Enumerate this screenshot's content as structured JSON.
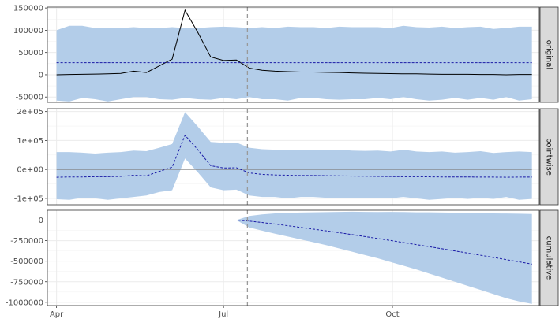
{
  "chart_data": [
    {
      "type": "area",
      "panel": "original",
      "strip_label": "original",
      "x_dates": [
        "2019-04-01",
        "2019-04-08",
        "2019-04-15",
        "2019-04-22",
        "2019-04-29",
        "2019-05-06",
        "2019-05-13",
        "2019-05-20",
        "2019-05-27",
        "2019-06-03",
        "2019-06-10",
        "2019-06-17",
        "2019-06-24",
        "2019-07-01",
        "2019-07-08",
        "2019-07-15",
        "2019-07-22",
        "2019-07-29",
        "2019-08-05",
        "2019-08-12",
        "2019-08-19",
        "2019-08-26",
        "2019-09-02",
        "2019-09-09",
        "2019-09-16",
        "2019-09-23",
        "2019-09-30",
        "2019-10-07",
        "2019-10-14",
        "2019-10-21",
        "2019-10-28",
        "2019-11-04",
        "2019-11-11",
        "2019-11-18",
        "2019-11-25",
        "2019-12-02",
        "2019-12-09",
        "2019-12-16"
      ],
      "series": [
        {
          "role": "observed",
          "line": "solid",
          "color": "#000000",
          "values": [
            0,
            500,
            1000,
            1500,
            2000,
            3000,
            8000,
            5000,
            20000,
            35000,
            145000,
            95000,
            40000,
            32000,
            33000,
            15000,
            10000,
            8000,
            7000,
            6000,
            6000,
            5500,
            5000,
            4000,
            3500,
            3000,
            2500,
            2000,
            2000,
            1500,
            1000,
            1000,
            1000,
            500,
            500,
            0,
            500,
            500
          ]
        },
        {
          "role": "predicted",
          "line": "dashed",
          "color": "#1a1aa6",
          "values": [
            27000,
            27000,
            27000,
            27000,
            27000,
            27000,
            27000,
            27000,
            27000,
            27000,
            27000,
            27000,
            27000,
            27000,
            27000,
            27000,
            27000,
            27000,
            27000,
            27000,
            27000,
            27000,
            27000,
            27000,
            27000,
            27000,
            27000,
            27000,
            27000,
            27000,
            27000,
            27000,
            27000,
            27000,
            27000,
            27000,
            27000,
            27000
          ]
        },
        {
          "role": "interval_upper",
          "values": [
            100000,
            110000,
            110000,
            105000,
            105000,
            105000,
            107000,
            105000,
            105000,
            107000,
            105000,
            105000,
            107000,
            108000,
            107000,
            105000,
            107000,
            105000,
            108000,
            107000,
            107000,
            105000,
            108000,
            107000,
            107000,
            107000,
            105000,
            110000,
            107000,
            106000,
            108000,
            105000,
            107000,
            108000,
            103000,
            105000,
            108000,
            108000
          ]
        },
        {
          "role": "interval_lower",
          "values": [
            -58000,
            -60000,
            -52000,
            -55000,
            -60000,
            -55000,
            -50000,
            -50000,
            -55000,
            -56000,
            -52000,
            -55000,
            -56000,
            -52000,
            -55000,
            -50000,
            -55000,
            -55000,
            -58000,
            -52000,
            -52000,
            -55000,
            -56000,
            -55000,
            -55000,
            -52000,
            -55000,
            -50000,
            -55000,
            -58000,
            -56000,
            -52000,
            -56000,
            -52000,
            -56000,
            -50000,
            -58000,
            -55000
          ]
        }
      ],
      "ylim": [
        -62000,
        152000
      ],
      "yticks": [
        -50000,
        0,
        50000,
        100000,
        150000
      ],
      "ytick_labels": [
        "-50000",
        "0",
        "50000",
        "100000",
        "150000"
      ]
    },
    {
      "type": "area",
      "panel": "pointwise",
      "strip_label": "pointwise",
      "x_dates": [
        "2019-04-01",
        "2019-04-08",
        "2019-04-15",
        "2019-04-22",
        "2019-04-29",
        "2019-05-06",
        "2019-05-13",
        "2019-05-20",
        "2019-05-27",
        "2019-06-03",
        "2019-06-10",
        "2019-06-17",
        "2019-06-24",
        "2019-07-01",
        "2019-07-08",
        "2019-07-15",
        "2019-07-22",
        "2019-07-29",
        "2019-08-05",
        "2019-08-12",
        "2019-08-19",
        "2019-08-26",
        "2019-09-02",
        "2019-09-09",
        "2019-09-16",
        "2019-09-23",
        "2019-09-30",
        "2019-10-07",
        "2019-10-14",
        "2019-10-21",
        "2019-10-28",
        "2019-11-04",
        "2019-11-11",
        "2019-11-18",
        "2019-11-25",
        "2019-12-02",
        "2019-12-09",
        "2019-12-16"
      ],
      "series": [
        {
          "role": "effect",
          "line": "dashed",
          "color": "#1a1aa6",
          "values": [
            -27000,
            -26000,
            -26000,
            -25000,
            -25000,
            -24000,
            -20000,
            -22000,
            -7000,
            8000,
            118000,
            68000,
            13000,
            5000,
            6000,
            -12000,
            -17000,
            -19000,
            -20000,
            -21000,
            -21000,
            -21500,
            -22000,
            -23000,
            -23500,
            -24000,
            -24500,
            -25000,
            -25000,
            -25500,
            -26000,
            -26000,
            -26000,
            -26500,
            -26500,
            -27000,
            -26500,
            -26500
          ]
        },
        {
          "role": "interval_upper",
          "values": [
            60000,
            60000,
            58000,
            55000,
            58000,
            60000,
            65000,
            63000,
            75000,
            88000,
            198000,
            148000,
            95000,
            92000,
            93000,
            75000,
            70000,
            68000,
            68000,
            68000,
            68000,
            68000,
            68000,
            65000,
            64000,
            65000,
            62000,
            68000,
            62000,
            60000,
            62000,
            58000,
            60000,
            63000,
            57000,
            60000,
            62000,
            60000
          ]
        },
        {
          "role": "interval_lower",
          "values": [
            -103000,
            -105000,
            -98000,
            -100000,
            -105000,
            -100000,
            -95000,
            -90000,
            -78000,
            -72000,
            38000,
            -10000,
            -62000,
            -72000,
            -70000,
            -90000,
            -95000,
            -95000,
            -100000,
            -95000,
            -95000,
            -98000,
            -100000,
            -100000,
            -100000,
            -98000,
            -100000,
            -95000,
            -100000,
            -105000,
            -102000,
            -98000,
            -102000,
            -98000,
            -102000,
            -95000,
            -105000,
            -102000
          ]
        },
        {
          "role": "zero_line",
          "line": "solid",
          "color": "#808080",
          "values": [
            0
          ]
        }
      ],
      "ylim": [
        -122000,
        210000
      ],
      "yticks": [
        -100000,
        0,
        100000,
        200000
      ],
      "ytick_labels": [
        "-1e+05",
        "0e+00",
        "1e+05",
        "2e+05"
      ]
    },
    {
      "type": "area",
      "panel": "cumulative",
      "strip_label": "cumulative",
      "x_dates": [
        "2019-04-01",
        "2019-04-08",
        "2019-04-15",
        "2019-04-22",
        "2019-04-29",
        "2019-05-06",
        "2019-05-13",
        "2019-05-20",
        "2019-05-27",
        "2019-06-03",
        "2019-06-10",
        "2019-06-17",
        "2019-06-24",
        "2019-07-01",
        "2019-07-08",
        "2019-07-15",
        "2019-07-22",
        "2019-07-29",
        "2019-08-05",
        "2019-08-12",
        "2019-08-19",
        "2019-08-26",
        "2019-09-02",
        "2019-09-09",
        "2019-09-16",
        "2019-09-23",
        "2019-09-30",
        "2019-10-07",
        "2019-10-14",
        "2019-10-21",
        "2019-10-28",
        "2019-11-04",
        "2019-11-11",
        "2019-11-18",
        "2019-11-25",
        "2019-12-02",
        "2019-12-09",
        "2019-12-16"
      ],
      "series": [
        {
          "role": "cumulative_effect",
          "line": "dashed",
          "color": "#1a1aa6",
          "values": [
            0,
            0,
            0,
            0,
            0,
            0,
            0,
            0,
            0,
            0,
            0,
            0,
            0,
            0,
            0,
            -12000,
            -29000,
            -48000,
            -68000,
            -89000,
            -110000,
            -131000,
            -153000,
            -176000,
            -200000,
            -224000,
            -248000,
            -273000,
            -298000,
            -323000,
            -349000,
            -375000,
            -401000,
            -428000,
            -454000,
            -481000,
            -508000,
            -535000
          ]
        },
        {
          "role": "interval_upper",
          "values": [
            0,
            0,
            0,
            0,
            0,
            0,
            0,
            0,
            0,
            0,
            0,
            0,
            0,
            0,
            0,
            50000,
            70000,
            82000,
            88000,
            92000,
            95000,
            97000,
            100000,
            102000,
            100000,
            98000,
            100000,
            98000,
            95000,
            95000,
            93000,
            90000,
            88000,
            85000,
            82000,
            80000,
            78000,
            75000
          ]
        },
        {
          "role": "interval_lower",
          "values": [
            0,
            0,
            0,
            0,
            0,
            0,
            0,
            0,
            0,
            0,
            0,
            0,
            0,
            0,
            0,
            -90000,
            -128000,
            -165000,
            -200000,
            -235000,
            -270000,
            -305000,
            -345000,
            -385000,
            -425000,
            -465000,
            -510000,
            -555000,
            -600000,
            -650000,
            -700000,
            -750000,
            -800000,
            -850000,
            -900000,
            -950000,
            -990000,
            -1020000
          ]
        },
        {
          "role": "zero_line",
          "line": "solid",
          "color": "#808080",
          "values": [
            0
          ]
        }
      ],
      "ylim": [
        -1040000,
        120000
      ],
      "yticks": [
        -1000000,
        -750000,
        -500000,
        -250000,
        0
      ],
      "ytick_labels": [
        "-1000000",
        "-750000",
        "-500000",
        "-250000",
        "0"
      ]
    }
  ],
  "x_axis": {
    "range_dates": [
      "2019-03-27",
      "2019-12-20"
    ],
    "ticks": [
      {
        "date": "2019-04-01",
        "label": "Apr"
      },
      {
        "date": "2019-07-01",
        "label": "Jul"
      },
      {
        "date": "2019-10-01",
        "label": "Oct"
      }
    ]
  },
  "intervention_date": "2019-07-14",
  "colors": {
    "interval_fill": "#b3cde9",
    "panel_background": "#ffffff",
    "grid": "#ebebeb",
    "strip_background": "#d9d9d9",
    "vline": "#999999"
  },
  "grid": true,
  "legend": "none"
}
